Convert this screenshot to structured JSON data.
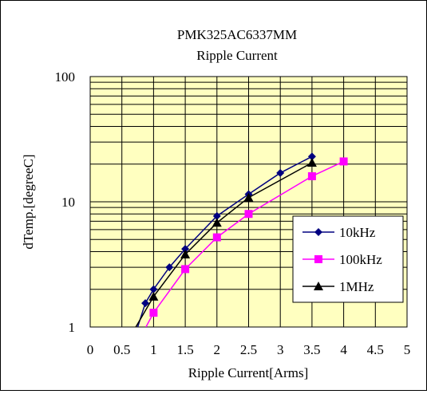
{
  "chart_data": {
    "type": "line",
    "title": "PMK325AC6337MM",
    "subtitle": "Ripple Current",
    "xlabel": "Ripple Current[Arms]",
    "ylabel": "dTemp.[degreeC]",
    "xlim": [
      0,
      5
    ],
    "ylim": [
      1,
      100
    ],
    "yscale": "log",
    "xticks": [
      "0",
      "0.5",
      "1",
      "1.5",
      "2",
      "2.5",
      "3",
      "3.5",
      "4",
      "4.5",
      "5"
    ],
    "yticks": [
      "1",
      "10",
      "100"
    ],
    "grid": true,
    "plot_background": "#ffffc0",
    "legend_position": "lower-right",
    "series": [
      {
        "name": "10kHz",
        "color": "#000080",
        "marker": "diamond",
        "points": [
          [
            0.75,
            1.0
          ],
          [
            0.87,
            1.55
          ],
          [
            1.0,
            2.0
          ],
          [
            1.25,
            3.0
          ],
          [
            1.5,
            4.2
          ],
          [
            2.0,
            7.7
          ],
          [
            2.5,
            11.5
          ],
          [
            3.0,
            17.0
          ],
          [
            3.5,
            23.0
          ]
        ]
      },
      {
        "name": "100kHz",
        "color": "#ff00ff",
        "marker": "square",
        "points": [
          [
            0.88,
            1.0
          ],
          [
            1.0,
            1.3
          ],
          [
            1.5,
            2.9
          ],
          [
            2.0,
            5.2
          ],
          [
            2.5,
            8.0
          ],
          [
            3.5,
            16.0
          ],
          [
            4.0,
            21.0
          ]
        ]
      },
      {
        "name": "1MHz",
        "color": "#000000",
        "marker": "triangle",
        "points": [
          [
            0.72,
            1.0
          ],
          [
            1.0,
            1.75
          ],
          [
            1.5,
            3.8
          ],
          [
            2.0,
            6.8
          ],
          [
            2.5,
            10.8
          ],
          [
            3.5,
            20.5
          ]
        ]
      }
    ]
  }
}
